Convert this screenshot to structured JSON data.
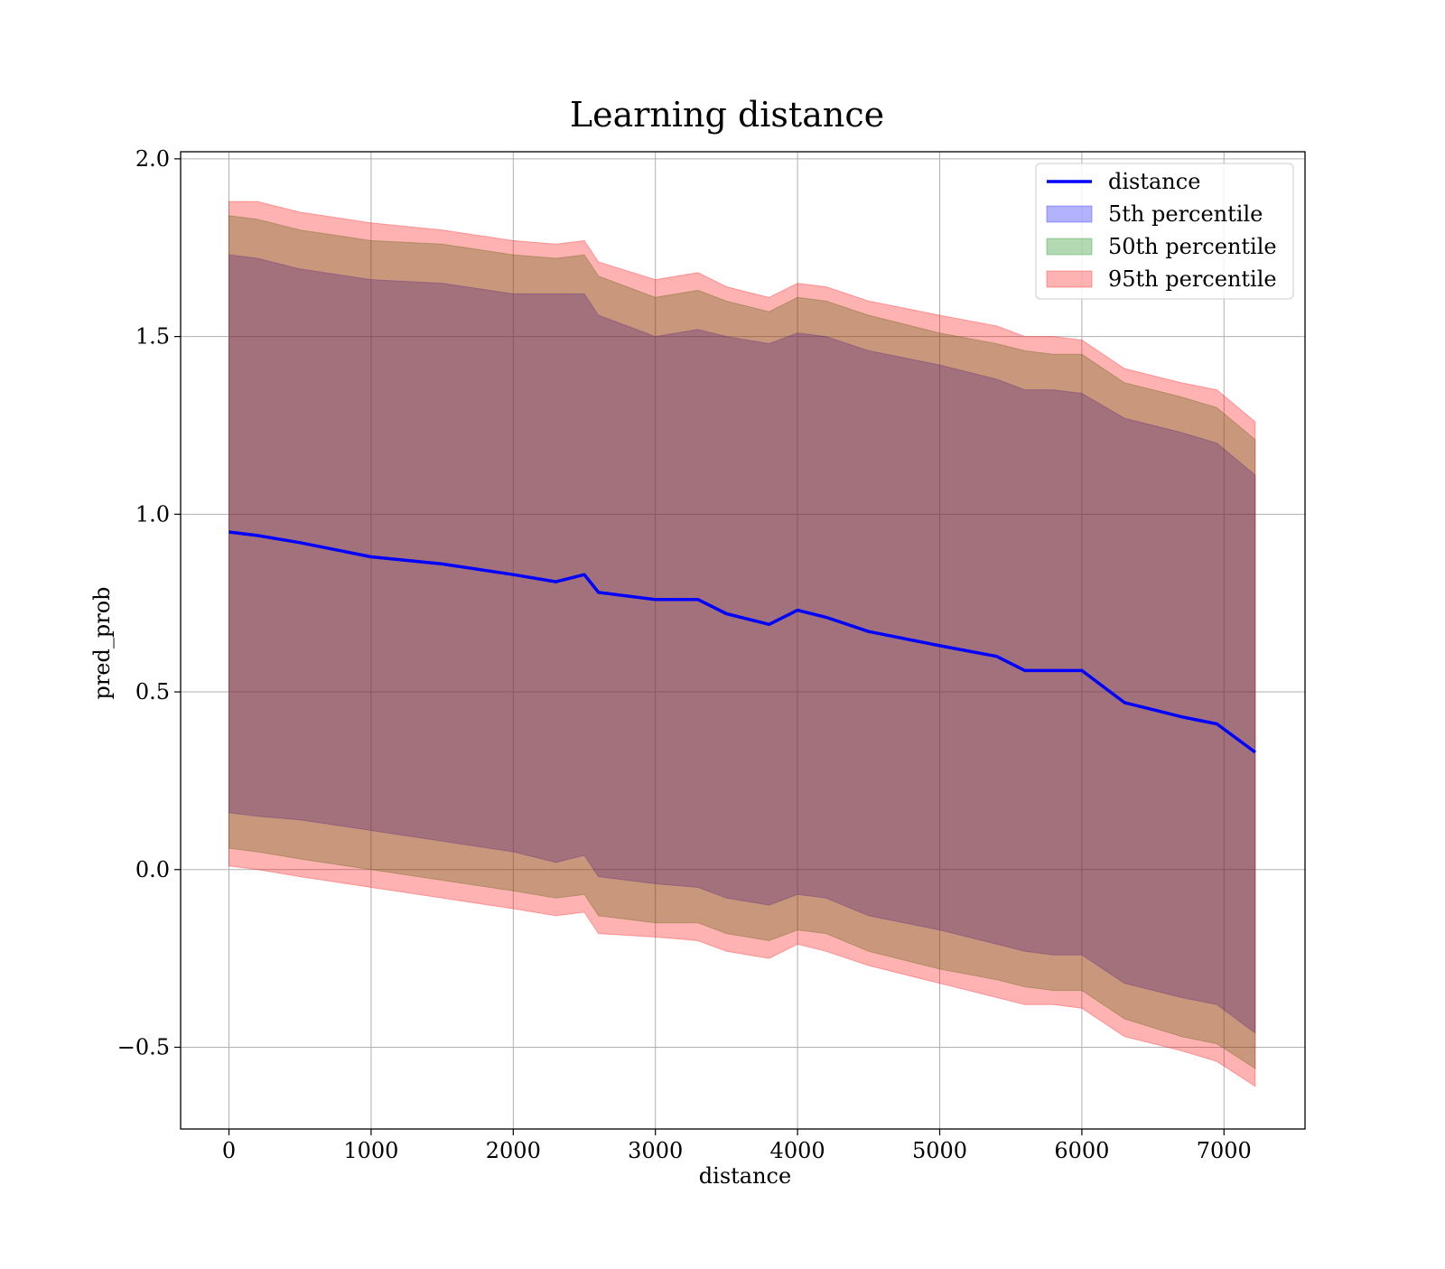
{
  "chart_data": {
    "type": "area",
    "title": "Learning distance",
    "xlabel": "distance",
    "ylabel": "pred_prob",
    "xlim": [
      -340,
      7570
    ],
    "ylim": [
      -0.73,
      2.02
    ],
    "xticks": [
      0,
      1000,
      2000,
      3000,
      4000,
      5000,
      6000,
      7000
    ],
    "xtick_labels": [
      "0",
      "1000",
      "2000",
      "3000",
      "4000",
      "5000",
      "6000",
      "7000"
    ],
    "yticks": [
      -0.5,
      0.0,
      0.5,
      1.0,
      1.5,
      2.0
    ],
    "ytick_labels": [
      "−0.5",
      "0.0",
      "0.5",
      "1.0",
      "1.5",
      "2.0"
    ],
    "grid": true,
    "legend_position": "top-right",
    "x": [
      0,
      200,
      500,
      1000,
      1500,
      2000,
      2300,
      2500,
      2600,
      3000,
      3300,
      3500,
      3800,
      4000,
      4200,
      4500,
      5000,
      5400,
      5600,
      5800,
      6000,
      6300,
      6700,
      6950,
      7220
    ],
    "series": [
      {
        "name": "distance",
        "kind": "line",
        "color": "#0000ff",
        "values": [
          0.95,
          0.94,
          0.92,
          0.88,
          0.86,
          0.83,
          0.81,
          0.83,
          0.78,
          0.76,
          0.76,
          0.72,
          0.69,
          0.73,
          0.71,
          0.67,
          0.63,
          0.6,
          0.56,
          0.56,
          0.56,
          0.47,
          0.43,
          0.41,
          0.33
        ]
      },
      {
        "name": "5th percentile",
        "kind": "band",
        "color": "#0000ff",
        "upper": [
          1.73,
          1.72,
          1.69,
          1.66,
          1.65,
          1.62,
          1.62,
          1.62,
          1.56,
          1.5,
          1.52,
          1.5,
          1.48,
          1.51,
          1.5,
          1.46,
          1.42,
          1.38,
          1.35,
          1.35,
          1.34,
          1.27,
          1.23,
          1.2,
          1.11
        ],
        "lower": [
          0.16,
          0.15,
          0.14,
          0.11,
          0.08,
          0.05,
          0.02,
          0.04,
          -0.02,
          -0.04,
          -0.05,
          -0.08,
          -0.1,
          -0.07,
          -0.08,
          -0.13,
          -0.17,
          -0.21,
          -0.23,
          -0.24,
          -0.24,
          -0.32,
          -0.36,
          -0.38,
          -0.46
        ]
      },
      {
        "name": "50th percentile",
        "kind": "band",
        "color": "#008000",
        "upper": [
          1.84,
          1.83,
          1.8,
          1.77,
          1.76,
          1.73,
          1.72,
          1.73,
          1.67,
          1.61,
          1.63,
          1.6,
          1.57,
          1.61,
          1.6,
          1.56,
          1.51,
          1.48,
          1.46,
          1.45,
          1.45,
          1.37,
          1.33,
          1.3,
          1.21
        ],
        "lower": [
          0.06,
          0.05,
          0.03,
          0.0,
          -0.03,
          -0.06,
          -0.08,
          -0.07,
          -0.13,
          -0.15,
          -0.15,
          -0.18,
          -0.2,
          -0.17,
          -0.18,
          -0.23,
          -0.28,
          -0.31,
          -0.33,
          -0.34,
          -0.34,
          -0.42,
          -0.47,
          -0.49,
          -0.56
        ]
      },
      {
        "name": "95th percentile",
        "kind": "band",
        "color": "#ff0000",
        "upper": [
          1.88,
          1.88,
          1.85,
          1.82,
          1.8,
          1.77,
          1.76,
          1.77,
          1.71,
          1.66,
          1.68,
          1.64,
          1.61,
          1.65,
          1.64,
          1.6,
          1.56,
          1.53,
          1.5,
          1.5,
          1.49,
          1.41,
          1.37,
          1.35,
          1.26
        ],
        "lower": [
          0.01,
          0.0,
          -0.02,
          -0.05,
          -0.08,
          -0.11,
          -0.13,
          -0.12,
          -0.18,
          -0.19,
          -0.2,
          -0.23,
          -0.25,
          -0.21,
          -0.23,
          -0.27,
          -0.32,
          -0.36,
          -0.38,
          -0.38,
          -0.39,
          -0.47,
          -0.51,
          -0.54,
          -0.61
        ]
      }
    ]
  }
}
